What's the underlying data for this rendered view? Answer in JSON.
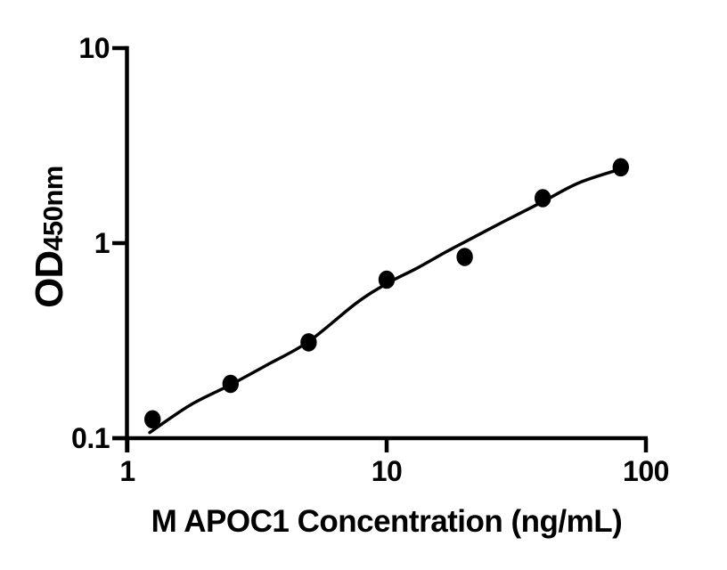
{
  "figure": {
    "background": "#ffffff",
    "ink_color": "#000000"
  },
  "chart_data": {
    "type": "scatter",
    "title": "",
    "xlabel": "M APOC1 Concentration (ng/mL)",
    "ylabel_main": "OD",
    "ylabel_sub": "450nm",
    "x_scale": "log10",
    "y_scale": "log10",
    "xlim": [
      1,
      100
    ],
    "ylim": [
      0.1,
      10
    ],
    "grid": false,
    "legend": "none",
    "x_ticks": [
      {
        "value": 1,
        "label": "1"
      },
      {
        "value": 10,
        "label": "10"
      },
      {
        "value": 100,
        "label": "100"
      }
    ],
    "y_ticks": [
      {
        "value": 0.1,
        "label": "0.1"
      },
      {
        "value": 1,
        "label": "1"
      },
      {
        "value": 10,
        "label": "10"
      }
    ],
    "series": [
      {
        "name": "M APOC1 standard",
        "marker": "filled-circle",
        "marker_color": "#000000",
        "x": [
          1.25,
          2.5,
          5,
          10,
          20,
          40,
          80
        ],
        "y": [
          0.125,
          0.19,
          0.31,
          0.65,
          0.85,
          1.7,
          2.45
        ]
      }
    ],
    "fit_curve": {
      "name": "fitted-standard-curve",
      "color": "#000000",
      "points": [
        [
          1.22,
          0.107
        ],
        [
          1.75,
          0.148
        ],
        [
          2.5,
          0.188
        ],
        [
          3.55,
          0.242
        ],
        [
          5.0,
          0.313
        ],
        [
          7.6,
          0.49
        ],
        [
          10.0,
          0.62
        ],
        [
          13.0,
          0.74
        ],
        [
          16.9,
          0.9
        ],
        [
          19.9,
          1.01
        ],
        [
          28.6,
          1.3
        ],
        [
          40.3,
          1.64
        ],
        [
          55.2,
          2.04
        ],
        [
          80.0,
          2.4
        ]
      ]
    }
  }
}
